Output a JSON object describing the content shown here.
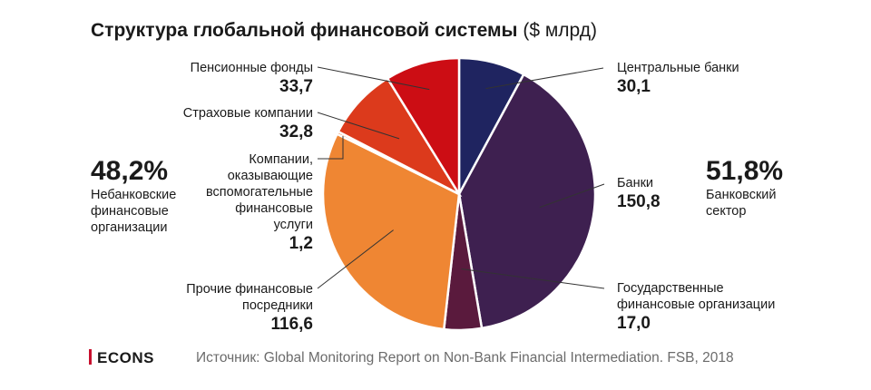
{
  "title": {
    "bold": "Структура глобальной финансовой системы",
    "unit": "($ млрд)"
  },
  "chart_data": {
    "type": "pie",
    "slices": [
      {
        "name": "Центральные банки",
        "value": 30.1,
        "label": "30,1",
        "color": "#1f2460"
      },
      {
        "name": "Банки",
        "value": 150.8,
        "label": "150,8",
        "color": "#3e2050"
      },
      {
        "name": "Государственные финансовые организации",
        "value": 17.0,
        "label": "17,0",
        "color": "#5a1a3d"
      },
      {
        "name": "Прочие финансовые посредники",
        "value": 116.6,
        "label": "116,6",
        "color": "#ef8633"
      },
      {
        "name": "Компании, оказывающие вспомогательные финансовые услуги",
        "value": 1.2,
        "label": "1,2",
        "color": "#ec6b26"
      },
      {
        "name": "Страховые компании",
        "value": 32.8,
        "label": "32,8",
        "color": "#dc3a1c"
      },
      {
        "name": "Пенсионные фонды",
        "value": 33.7,
        "label": "33,7",
        "color": "#cc0d14"
      }
    ],
    "groups": [
      {
        "pct": "48,2%",
        "caption": [
          "Небанковские",
          "финансовые",
          "организации"
        ]
      },
      {
        "pct": "51,8%",
        "caption": [
          "Банковский",
          "сектор"
        ]
      }
    ]
  },
  "labels": {
    "central": {
      "name": [
        "Центральные банки"
      ],
      "val": "30,1"
    },
    "banks": {
      "name": [
        "Банки"
      ],
      "val": "150,8"
    },
    "gov": {
      "name": [
        "Государственные",
        "финансовые организации"
      ],
      "val": "17,0"
    },
    "other": {
      "name": [
        "Прочие финансовые",
        "посредники"
      ],
      "val": "116,6"
    },
    "aux": {
      "name": [
        "Компании,",
        "оказывающие",
        "вспомогательные",
        "финансовые",
        "услуги"
      ],
      "val": "1,2"
    },
    "insurance": {
      "name": [
        "Страховые компании"
      ],
      "val": "32,8"
    },
    "pension": {
      "name": [
        "Пенсионные фонды"
      ],
      "val": "33,7"
    }
  },
  "footer": {
    "brand": "ECONS",
    "source": "Источник: Global Monitoring Report on Non-Bank Financial Intermediation. FSB, 2018",
    "brand_color": "#c8102e"
  }
}
